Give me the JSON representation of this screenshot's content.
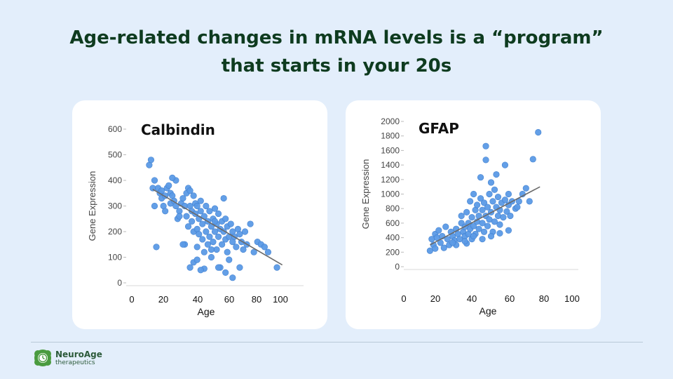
{
  "slide": {
    "title_line1": "Age-related changes in mRNA levels is a “program”",
    "title_line2": "that starts in your 20s"
  },
  "logo": {
    "name": "NeuroAge",
    "subtitle": "therapeutics"
  },
  "colors": {
    "background": "#e3eefb",
    "title": "#0e3b1f",
    "point": "#5b9ae6",
    "trend": "#6a6a6a",
    "brand": "#4a9b3f"
  },
  "chart_data": [
    {
      "type": "scatter",
      "title": "Calbindin",
      "xlabel": "Age",
      "ylabel": "Gene Expression",
      "x_ticks": [
        "0",
        "20",
        "40",
        "60",
        "80",
        "100"
      ],
      "y_ticks": [
        "0",
        "100",
        "200",
        "300",
        "400",
        "500",
        "600"
      ],
      "xlim": [
        0,
        100
      ],
      "ylim": [
        0,
        600
      ],
      "trend": {
        "x": [
          15,
          88
        ],
        "y": [
          365,
          70
        ]
      },
      "points": [
        [
          13,
          460
        ],
        [
          14,
          480
        ],
        [
          15,
          370
        ],
        [
          16,
          400
        ],
        [
          16,
          300
        ],
        [
          17,
          140
        ],
        [
          18,
          370
        ],
        [
          19,
          350
        ],
        [
          20,
          360
        ],
        [
          20,
          330
        ],
        [
          21,
          300
        ],
        [
          22,
          280
        ],
        [
          22,
          340
        ],
        [
          23,
          370
        ],
        [
          24,
          380
        ],
        [
          25,
          350
        ],
        [
          25,
          310
        ],
        [
          26,
          340
        ],
        [
          27,
          320
        ],
        [
          28,
          300
        ],
        [
          28,
          400
        ],
        [
          29,
          250
        ],
        [
          30,
          280
        ],
        [
          31,
          310
        ],
        [
          32,
          330
        ],
        [
          33,
          300
        ],
        [
          33,
          150
        ],
        [
          34,
          350
        ],
        [
          34,
          260
        ],
        [
          35,
          370
        ],
        [
          35,
          220
        ],
        [
          36,
          300
        ],
        [
          36,
          360
        ],
        [
          37,
          280
        ],
        [
          37,
          240
        ],
        [
          38,
          340
        ],
        [
          38,
          200
        ],
        [
          38,
          80
        ],
        [
          39,
          270
        ],
        [
          39,
          310
        ],
        [
          40,
          300
        ],
        [
          40,
          210
        ],
        [
          40,
          140
        ],
        [
          41,
          250
        ],
        [
          41,
          190
        ],
        [
          42,
          280
        ],
        [
          42,
          320
        ],
        [
          43,
          230
        ],
        [
          43,
          170
        ],
        [
          44,
          260
        ],
        [
          44,
          120
        ],
        [
          45,
          300
        ],
        [
          45,
          200
        ],
        [
          46,
          240
        ],
        [
          46,
          150
        ],
        [
          47,
          280
        ],
        [
          47,
          180
        ],
        [
          48,
          220
        ],
        [
          48,
          100
        ],
        [
          49,
          250
        ],
        [
          49,
          160
        ],
        [
          50,
          290
        ],
        [
          50,
          200
        ],
        [
          51,
          230
        ],
        [
          51,
          130
        ],
        [
          52,
          270
        ],
        [
          52,
          180
        ],
        [
          53,
          210
        ],
        [
          53,
          60
        ],
        [
          54,
          240
        ],
        [
          54,
          150
        ],
        [
          55,
          200
        ],
        [
          55,
          330
        ],
        [
          56,
          250
        ],
        [
          56,
          170
        ],
        [
          57,
          220
        ],
        [
          57,
          120
        ],
        [
          58,
          180
        ],
        [
          58,
          90
        ],
        [
          59,
          230
        ],
        [
          60,
          200
        ],
        [
          60,
          160
        ],
        [
          61,
          180
        ],
        [
          62,
          140
        ],
        [
          63,
          210
        ],
        [
          64,
          190
        ],
        [
          65,
          160
        ],
        [
          66,
          130
        ],
        [
          67,
          200
        ],
        [
          68,
          150
        ],
        [
          70,
          230
        ],
        [
          72,
          120
        ],
        [
          74,
          160
        ],
        [
          76,
          150
        ],
        [
          78,
          140
        ],
        [
          80,
          120
        ],
        [
          85,
          60
        ],
        [
          36,
          60
        ],
        [
          44,
          55
        ],
        [
          56,
          40
        ],
        [
          60,
          20
        ],
        [
          26,
          410
        ],
        [
          30,
          260
        ],
        [
          40,
          90
        ],
        [
          48,
          130
        ],
        [
          52,
          60
        ],
        [
          64,
          60
        ],
        [
          32,
          150
        ],
        [
          42,
          50
        ],
        [
          50,
          240
        ]
      ]
    },
    {
      "type": "scatter",
      "title": "GFAP",
      "xlabel": "Age",
      "ylabel": "Gene Expression",
      "x_ticks": [
        "0",
        "20",
        "40",
        "60",
        "80",
        "100"
      ],
      "y_ticks": [
        "0",
        "200",
        "400",
        "600",
        "800",
        "1000",
        "1200",
        "1400",
        "1600",
        "1800",
        "2000"
      ],
      "xlim": [
        0,
        100
      ],
      "ylim": [
        0,
        2000
      ],
      "trend": {
        "x": [
          15,
          78
        ],
        "y": [
          300,
          1100
        ]
      },
      "points": [
        [
          15,
          220
        ],
        [
          16,
          380
        ],
        [
          17,
          300
        ],
        [
          18,
          450
        ],
        [
          18,
          250
        ],
        [
          19,
          400
        ],
        [
          20,
          500
        ],
        [
          21,
          330
        ],
        [
          22,
          420
        ],
        [
          23,
          260
        ],
        [
          24,
          550
        ],
        [
          25,
          380
        ],
        [
          26,
          300
        ],
        [
          27,
          480
        ],
        [
          28,
          420
        ],
        [
          29,
          360
        ],
        [
          30,
          520
        ],
        [
          30,
          300
        ],
        [
          31,
          450
        ],
        [
          32,
          380
        ],
        [
          33,
          600
        ],
        [
          33,
          700
        ],
        [
          34,
          480
        ],
        [
          35,
          420
        ],
        [
          35,
          550
        ],
        [
          36,
          750
        ],
        [
          36,
          320
        ],
        [
          37,
          600
        ],
        [
          37,
          450
        ],
        [
          38,
          520
        ],
        [
          38,
          900
        ],
        [
          39,
          680
        ],
        [
          39,
          380
        ],
        [
          40,
          1000
        ],
        [
          40,
          560
        ],
        [
          41,
          780
        ],
        [
          41,
          450
        ],
        [
          42,
          620
        ],
        [
          42,
          850
        ],
        [
          43,
          700
        ],
        [
          43,
          520
        ],
        [
          44,
          940
        ],
        [
          44,
          1230
        ],
        [
          45,
          600
        ],
        [
          45,
          780
        ],
        [
          46,
          880
        ],
        [
          46,
          480
        ],
        [
          47,
          1470
        ],
        [
          47,
          1660
        ],
        [
          47,
          700
        ],
        [
          48,
          820
        ],
        [
          48,
          560
        ],
        [
          49,
          1000
        ],
        [
          49,
          650
        ],
        [
          50,
          1160
        ],
        [
          50,
          750
        ],
        [
          51,
          900
        ],
        [
          51,
          480
        ],
        [
          52,
          1060
        ],
        [
          52,
          620
        ],
        [
          53,
          820
        ],
        [
          53,
          1270
        ],
        [
          54,
          700
        ],
        [
          54,
          960
        ],
        [
          55,
          580
        ],
        [
          55,
          780
        ],
        [
          56,
          880
        ],
        [
          57,
          680
        ],
        [
          58,
          1400
        ],
        [
          58,
          920
        ],
        [
          59,
          760
        ],
        [
          60,
          1000
        ],
        [
          60,
          850
        ],
        [
          61,
          700
        ],
        [
          62,
          900
        ],
        [
          64,
          800
        ],
        [
          66,
          900
        ],
        [
          68,
          1000
        ],
        [
          70,
          1080
        ],
        [
          72,
          900
        ],
        [
          74,
          1480
        ],
        [
          77,
          1850
        ],
        [
          45,
          380
        ],
        [
          50,
          420
        ],
        [
          55,
          460
        ],
        [
          60,
          500
        ],
        [
          65,
          820
        ],
        [
          40,
          420
        ],
        [
          35,
          350
        ],
        [
          28,
          330
        ]
      ]
    }
  ]
}
